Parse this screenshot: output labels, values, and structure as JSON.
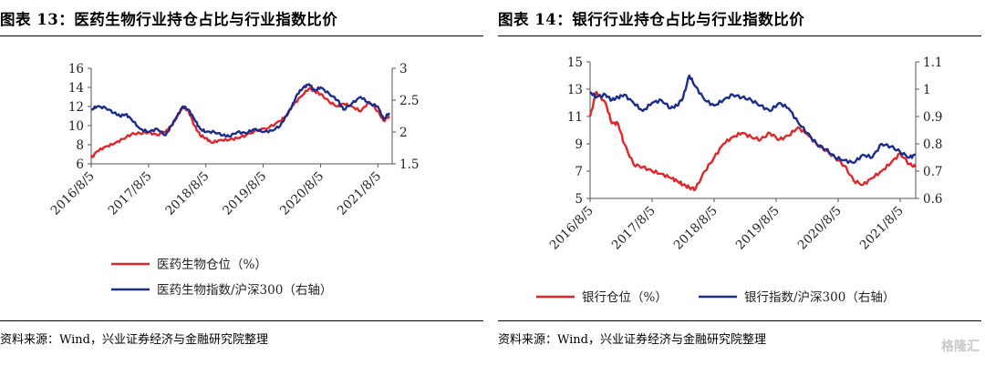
{
  "watermark": "格隆汇",
  "panels": [
    {
      "title": "图表 13：医药生物行业持仓占比与行业指数比价",
      "source": "资料来源：Wind，兴业证券经济与金融研究院整理"
    },
    {
      "title": "图表 14：银行行业持仓占比与行业指数比价",
      "source": "资料来源：Wind，兴业证券经济与金融研究院整理"
    }
  ],
  "chart_data": [
    {
      "type": "line",
      "x_tick_labels": [
        "2016/8/5",
        "2017/8/5",
        "2018/8/5",
        "2019/8/5",
        "2020/8/5",
        "2021/8/5"
      ],
      "x_range": [
        2016.6,
        2021.85
      ],
      "ylim_left": [
        6,
        16
      ],
      "yticks_left": [
        6,
        8,
        10,
        12,
        14,
        16
      ],
      "ylim_right": [
        1.5,
        3
      ],
      "yticks_right": [
        "1.5",
        "2",
        "2.5",
        "3"
      ],
      "grid": false,
      "legend_position": "bottom",
      "series": [
        {
          "name": "医药生物仓位（%）",
          "axis": "left",
          "color": "#e0262b",
          "x": [
            2016.6,
            2016.7,
            2016.85,
            2017.0,
            2017.15,
            2017.3,
            2017.45,
            2017.6,
            2017.75,
            2017.9,
            2018.0,
            2018.1,
            2018.2,
            2018.3,
            2018.4,
            2018.5,
            2018.6,
            2018.7,
            2018.85,
            2019.0,
            2019.15,
            2019.3,
            2019.5,
            2019.7,
            2019.9,
            2020.0,
            2020.1,
            2020.25,
            2020.4,
            2020.5,
            2020.6,
            2020.75,
            2020.9,
            2021.0,
            2021.15,
            2021.3,
            2021.45,
            2021.6,
            2021.7,
            2021.8
          ],
          "values": [
            6.6,
            7.3,
            7.8,
            8.1,
            8.6,
            9.1,
            9.2,
            9.3,
            9.0,
            9.4,
            10.0,
            11.0,
            12.0,
            11.5,
            10.0,
            9.0,
            8.7,
            8.2,
            8.5,
            8.5,
            8.7,
            9.0,
            9.5,
            9.8,
            10.5,
            11.0,
            12.0,
            13.0,
            13.9,
            13.6,
            13.3,
            12.5,
            12.0,
            12.3,
            12.0,
            11.5,
            12.5,
            11.5,
            10.5,
            11.0
          ]
        },
        {
          "name": "医药生物指数/沪深300（右轴）",
          "axis": "right",
          "color": "#1c2c8c",
          "x": [
            2016.6,
            2016.7,
            2016.85,
            2017.0,
            2017.1,
            2017.2,
            2017.3,
            2017.45,
            2017.6,
            2017.75,
            2017.9,
            2018.0,
            2018.1,
            2018.2,
            2018.3,
            2018.4,
            2018.5,
            2018.6,
            2018.75,
            2018.9,
            2019.0,
            2019.15,
            2019.3,
            2019.45,
            2019.6,
            2019.75,
            2019.9,
            2020.0,
            2020.1,
            2020.2,
            2020.3,
            2020.4,
            2020.5,
            2020.6,
            2020.75,
            2020.9,
            2021.0,
            2021.15,
            2021.3,
            2021.45,
            2021.6,
            2021.7,
            2021.8
          ],
          "values": [
            2.35,
            2.4,
            2.38,
            2.3,
            2.25,
            2.28,
            2.2,
            2.05,
            2.0,
            2.05,
            1.95,
            2.1,
            2.25,
            2.4,
            2.35,
            2.2,
            2.05,
            2.0,
            2.0,
            1.95,
            1.93,
            2.0,
            1.98,
            2.05,
            2.0,
            2.02,
            2.1,
            2.25,
            2.4,
            2.6,
            2.7,
            2.75,
            2.65,
            2.7,
            2.6,
            2.5,
            2.35,
            2.45,
            2.55,
            2.45,
            2.4,
            2.2,
            2.3
          ]
        }
      ]
    },
    {
      "type": "line",
      "x_tick_labels": [
        "2016/8/5",
        "2017/8/5",
        "2018/8/5",
        "2019/8/5",
        "2020/8/5",
        "2021/8/5"
      ],
      "x_range": [
        2016.6,
        2021.85
      ],
      "ylim_left": [
        5,
        15
      ],
      "yticks_left": [
        5,
        7,
        9,
        11,
        13,
        15
      ],
      "ylim_right": [
        0.6,
        1.1
      ],
      "yticks_right": [
        "0.6",
        "0.7",
        "0.8",
        "0.9",
        "1",
        "1.1"
      ],
      "grid": false,
      "legend_position": "bottom",
      "series": [
        {
          "name": "银行仓位（%）",
          "axis": "left",
          "color": "#e0262b",
          "x": [
            2016.6,
            2016.7,
            2016.85,
            2016.95,
            2017.05,
            2017.15,
            2017.3,
            2017.45,
            2017.6,
            2017.75,
            2017.9,
            2018.0,
            2018.1,
            2018.2,
            2018.3,
            2018.45,
            2018.6,
            2018.75,
            2018.9,
            2019.05,
            2019.2,
            2019.35,
            2019.5,
            2019.65,
            2019.8,
            2019.95,
            2020.1,
            2020.25,
            2020.4,
            2020.55,
            2020.7,
            2020.85,
            2021.0,
            2021.15,
            2021.3,
            2021.45,
            2021.6,
            2021.75,
            2021.85
          ],
          "values": [
            11.0,
            12.8,
            12.0,
            10.5,
            10.5,
            9.0,
            7.5,
            7.3,
            7.0,
            6.8,
            6.5,
            6.3,
            6.0,
            5.8,
            5.7,
            7.0,
            8.0,
            9.0,
            9.5,
            9.8,
            9.5,
            9.3,
            9.8,
            9.3,
            9.6,
            10.2,
            9.7,
            9.0,
            8.5,
            8.0,
            7.4,
            6.3,
            6.0,
            6.5,
            7.0,
            7.6,
            8.3,
            7.5,
            7.3
          ]
        },
        {
          "name": "银行指数/沪深300（右轴）",
          "axis": "right",
          "color": "#1c2c8c",
          "x": [
            2016.6,
            2016.7,
            2016.85,
            2016.95,
            2017.05,
            2017.15,
            2017.3,
            2017.45,
            2017.6,
            2017.75,
            2017.9,
            2018.0,
            2018.1,
            2018.2,
            2018.3,
            2018.45,
            2018.6,
            2018.75,
            2018.9,
            2019.05,
            2019.2,
            2019.35,
            2019.5,
            2019.65,
            2019.8,
            2019.95,
            2020.1,
            2020.25,
            2020.4,
            2020.55,
            2020.7,
            2020.85,
            2021.0,
            2021.15,
            2021.3,
            2021.45,
            2021.6,
            2021.75,
            2021.85
          ],
          "values": [
            0.99,
            0.97,
            0.98,
            0.96,
            0.97,
            0.98,
            0.95,
            0.92,
            0.95,
            0.96,
            0.93,
            0.94,
            0.97,
            1.05,
            1.01,
            0.96,
            0.94,
            0.96,
            0.98,
            0.97,
            0.96,
            0.94,
            0.92,
            0.95,
            0.93,
            0.88,
            0.84,
            0.8,
            0.78,
            0.75,
            0.74,
            0.73,
            0.76,
            0.75,
            0.8,
            0.79,
            0.77,
            0.75,
            0.76
          ]
        }
      ]
    }
  ]
}
